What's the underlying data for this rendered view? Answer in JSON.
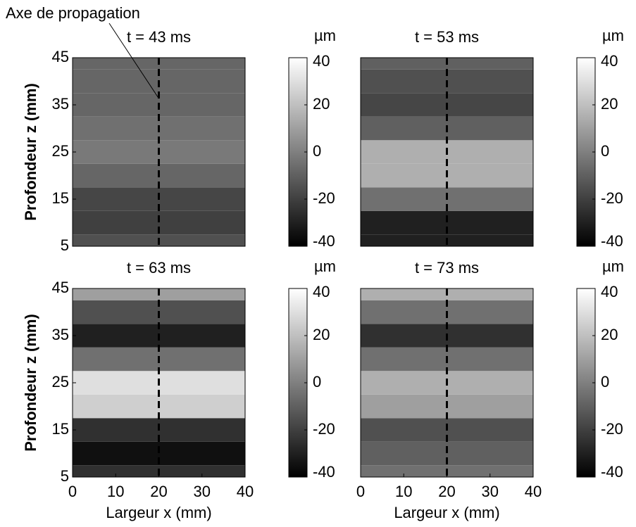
{
  "chart_data": [
    {
      "type": "heatmap",
      "title": "t = 43 ms",
      "annotation": "Axe de propagation",
      "ylabel": "Profondeur z (mm)",
      "z": [
        5,
        10,
        15,
        20,
        25,
        30,
        35,
        40,
        45
      ],
      "values": [
        -15,
        -20,
        -18,
        -8,
        -2,
        -5,
        -8,
        -8,
        -8
      ],
      "xlim": [
        0,
        40
      ],
      "ylim": [
        5,
        45
      ],
      "yticks": [
        5,
        15,
        25,
        35,
        45
      ],
      "vline": 20,
      "clim": [
        -40,
        40
      ],
      "cticks": [
        -40,
        -20,
        0,
        20,
        40
      ],
      "clabel": "µm"
    },
    {
      "type": "heatmap",
      "title": "t = 53 ms",
      "z": [
        5,
        10,
        15,
        20,
        25,
        30,
        35,
        40,
        45
      ],
      "values": [
        -30,
        -30,
        -5,
        15,
        15,
        -10,
        -18,
        -15,
        -10
      ],
      "xlim": [
        0,
        40
      ],
      "ylim": [
        5,
        45
      ],
      "vline": 20,
      "clim": [
        -40,
        40
      ],
      "cticks": [
        -40,
        -20,
        0,
        20,
        40
      ],
      "clabel": "µm"
    },
    {
      "type": "heatmap",
      "title": "t = 63 ms",
      "ylabel": "Profondeur z (mm)",
      "xlabel": "Largeur x (mm)",
      "z": [
        5,
        10,
        15,
        20,
        25,
        30,
        35,
        40,
        45
      ],
      "values": [
        -25,
        -35,
        -25,
        25,
        30,
        -5,
        -30,
        -15,
        10
      ],
      "xlim": [
        0,
        40
      ],
      "ylim": [
        5,
        45
      ],
      "xticks": [
        0,
        10,
        20,
        30,
        40
      ],
      "yticks": [
        5,
        15,
        25,
        35,
        45
      ],
      "vline": 20,
      "clim": [
        -40,
        40
      ],
      "cticks": [
        -40,
        -20,
        0,
        20,
        40
      ],
      "clabel": "µm"
    },
    {
      "type": "heatmap",
      "title": "t = 73 ms",
      "xlabel": "Largeur x (mm)",
      "z": [
        5,
        10,
        15,
        20,
        25,
        30,
        35,
        40,
        45
      ],
      "values": [
        -5,
        -10,
        -15,
        10,
        15,
        -5,
        -25,
        -5,
        15
      ],
      "xlim": [
        0,
        40
      ],
      "ylim": [
        5,
        45
      ],
      "xticks": [
        0,
        10,
        20,
        30,
        40
      ],
      "vline": 20,
      "clim": [
        -40,
        40
      ],
      "cticks": [
        -40,
        -20,
        0,
        20,
        40
      ],
      "clabel": "µm"
    }
  ]
}
